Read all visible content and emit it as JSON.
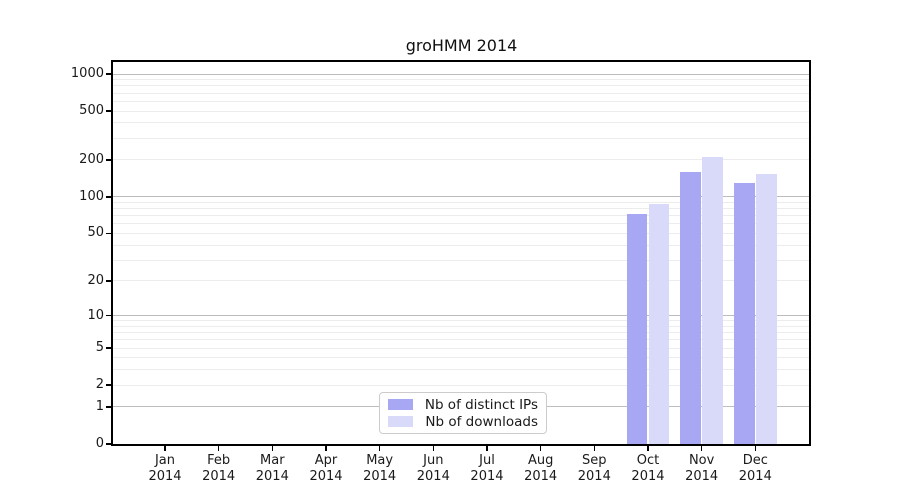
{
  "chart_data": {
    "type": "bar",
    "title": "groHMM 2014",
    "categories": [
      "Jan",
      "Feb",
      "Mar",
      "Apr",
      "May",
      "Jun",
      "Jul",
      "Aug",
      "Sep",
      "Oct",
      "Nov",
      "Dec"
    ],
    "category_year": "2014",
    "series": [
      {
        "name": "Nb of distinct IPs",
        "color": "#a7a7f3",
        "values": [
          0,
          0,
          0,
          0,
          0,
          0,
          0,
          0,
          0,
          72,
          160,
          130
        ]
      },
      {
        "name": "Nb of downloads",
        "color": "#d9daf9",
        "values": [
          0,
          0,
          0,
          0,
          0,
          0,
          0,
          0,
          0,
          88,
          213,
          154
        ]
      }
    ],
    "y_axis": {
      "scale": "log1p",
      "tick_labels": [
        0,
        1,
        2,
        5,
        10,
        20,
        50,
        100,
        200,
        500,
        1000
      ],
      "major_gridlines": [
        1,
        10,
        100,
        1000
      ],
      "minor_gridlines": [
        2,
        3,
        4,
        5,
        6,
        7,
        8,
        9,
        20,
        30,
        40,
        50,
        60,
        70,
        80,
        90,
        200,
        300,
        400,
        500,
        600,
        700,
        800,
        900
      ],
      "ylim_top_value": 1275
    },
    "legend_position": "lower center",
    "grid": true
  },
  "colors": {
    "spine": "#000000",
    "major_grid": "#bdbdbd",
    "minor_grid": "#ececec",
    "legend_border": "#cccccc",
    "text": "#1a1a1a",
    "background": "#ffffff"
  }
}
